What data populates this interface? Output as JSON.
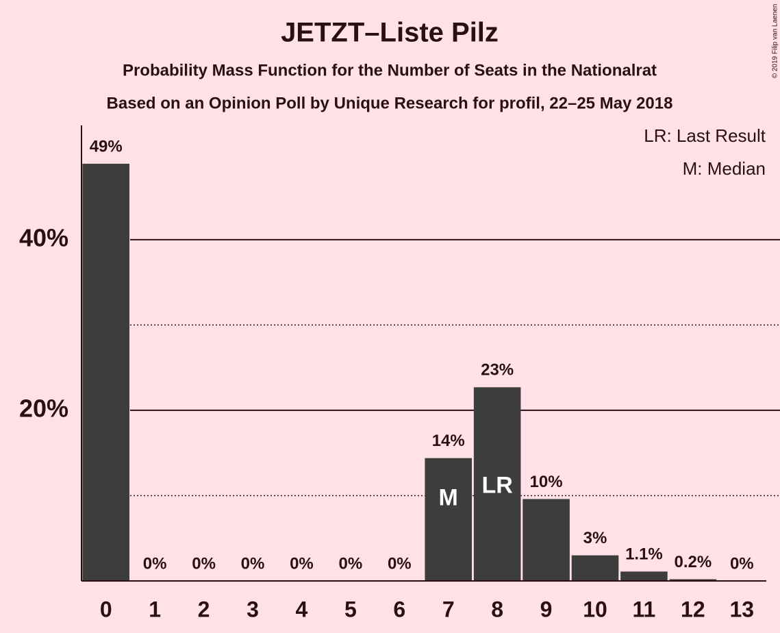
{
  "chart_data": {
    "type": "bar",
    "title": "JETZT–Liste Pilz",
    "subtitle": "Probability Mass Function for the Number of Seats in the Nationalrat",
    "subtitle2": "Based on an Opinion Poll by Unique Research for profil, 22–25 May 2018",
    "credit": "© 2019 Filip van Laenen",
    "legend": [
      "LR: Last Result",
      "M: Median"
    ],
    "categories": [
      0,
      1,
      2,
      3,
      4,
      5,
      6,
      7,
      8,
      9,
      10,
      11,
      12,
      13
    ],
    "values": [
      48.9,
      0,
      0,
      0,
      0,
      0,
      0,
      14.4,
      22.7,
      9.6,
      3,
      1.1,
      0.2,
      0
    ],
    "value_labels": [
      "49%",
      "0%",
      "0%",
      "0%",
      "0%",
      "0%",
      "0%",
      "14%",
      "23%",
      "10%",
      "3%",
      "1.1%",
      "0.2%",
      "0%"
    ],
    "color": "#3d3d3d",
    "ylim": [
      0,
      53.4
    ],
    "yticks": [
      {
        "value": 20,
        "label": "20%"
      },
      {
        "value": 40,
        "label": "40%"
      }
    ],
    "minor_grid": [
      10,
      30
    ],
    "markers": [
      {
        "index": 7,
        "label": "M"
      },
      {
        "index": 8,
        "label": "LR"
      }
    ]
  }
}
